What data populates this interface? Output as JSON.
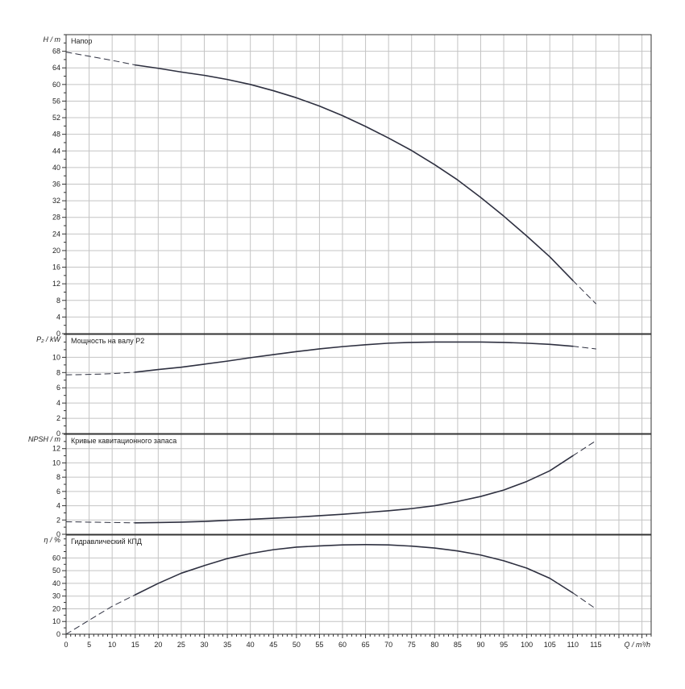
{
  "chart_data": [
    {
      "type": "line",
      "title": "Напор",
      "ylabel": "H / m",
      "ylim": [
        0,
        72
      ],
      "yticks": [
        0,
        4,
        8,
        12,
        16,
        20,
        24,
        28,
        32,
        36,
        40,
        44,
        48,
        52,
        56,
        60,
        64,
        68
      ],
      "series": [
        {
          "style": "dashed",
          "x": [
            0,
            5,
            10,
            15
          ],
          "y": [
            67.8,
            66.8,
            65.8,
            64.7
          ]
        },
        {
          "style": "solid",
          "x": [
            15,
            20,
            25,
            30,
            35,
            40,
            45,
            50,
            55,
            60,
            65,
            70,
            75,
            80,
            85,
            90,
            95,
            100,
            105,
            110
          ],
          "y": [
            64.7,
            63.9,
            63.0,
            62.2,
            61.2,
            60.0,
            58.5,
            56.8,
            54.8,
            52.5,
            49.9,
            47.1,
            44.1,
            40.7,
            37.0,
            32.8,
            28.3,
            23.5,
            18.5,
            12.8
          ]
        },
        {
          "style": "dashed",
          "x": [
            110,
            115
          ],
          "y": [
            12.8,
            7.2
          ]
        }
      ]
    },
    {
      "type": "line",
      "title": "Мощность на валу P2",
      "ylabel": "P₂ / kW",
      "ylim": [
        0,
        13
      ],
      "yticks": [
        0,
        2,
        4,
        6,
        8,
        10
      ],
      "series": [
        {
          "style": "dashed",
          "x": [
            0,
            5,
            10,
            15
          ],
          "y": [
            7.7,
            7.75,
            7.85,
            8.05
          ]
        },
        {
          "style": "solid",
          "x": [
            15,
            20,
            25,
            30,
            35,
            40,
            45,
            50,
            55,
            60,
            65,
            70,
            75,
            80,
            85,
            90,
            95,
            100,
            105,
            110
          ],
          "y": [
            8.05,
            8.4,
            8.7,
            9.1,
            9.5,
            9.95,
            10.35,
            10.75,
            11.1,
            11.4,
            11.65,
            11.85,
            11.95,
            12.0,
            12.0,
            12.0,
            11.95,
            11.85,
            11.7,
            11.45
          ]
        },
        {
          "style": "dashed",
          "x": [
            110,
            115
          ],
          "y": [
            11.45,
            11.1
          ]
        }
      ]
    },
    {
      "type": "line",
      "title": "Кривые кавитационного запаса",
      "ylabel": "NPSH / m",
      "ylim": [
        0,
        14
      ],
      "yticks": [
        0,
        2,
        4,
        6,
        8,
        10,
        12
      ],
      "series": [
        {
          "style": "dashed",
          "x": [
            0,
            5,
            10,
            15
          ],
          "y": [
            1.75,
            1.7,
            1.65,
            1.6
          ]
        },
        {
          "style": "solid",
          "x": [
            15,
            20,
            25,
            30,
            35,
            40,
            45,
            50,
            55,
            60,
            65,
            70,
            75,
            80,
            85,
            90,
            95,
            100,
            105,
            110
          ],
          "y": [
            1.6,
            1.65,
            1.7,
            1.8,
            1.95,
            2.1,
            2.25,
            2.4,
            2.6,
            2.8,
            3.05,
            3.3,
            3.6,
            4.0,
            4.6,
            5.3,
            6.2,
            7.4,
            8.9,
            11.0
          ]
        },
        {
          "style": "dashed",
          "x": [
            110,
            115
          ],
          "y": [
            11.0,
            13.1
          ]
        }
      ]
    },
    {
      "type": "line",
      "title": "Гидравлический КПД",
      "ylabel": "η / %",
      "xlabel": "Q / m³/h",
      "ylim": [
        0,
        78
      ],
      "yticks": [
        0,
        10,
        20,
        30,
        40,
        50,
        60
      ],
      "xlim": [
        0,
        127
      ],
      "xticks": [
        0,
        5,
        10,
        15,
        20,
        25,
        30,
        35,
        40,
        45,
        50,
        55,
        60,
        65,
        70,
        75,
        80,
        85,
        90,
        95,
        100,
        105,
        110,
        115
      ],
      "series": [
        {
          "style": "dashed",
          "x": [
            0,
            5,
            10,
            15
          ],
          "y": [
            0,
            11,
            22,
            31
          ]
        },
        {
          "style": "solid",
          "x": [
            15,
            20,
            25,
            30,
            35,
            40,
            45,
            50,
            55,
            60,
            65,
            70,
            75,
            80,
            85,
            90,
            95,
            100,
            105,
            110
          ],
          "y": [
            31,
            40,
            48,
            54,
            59.5,
            63.5,
            66.5,
            68.5,
            69.5,
            70.3,
            70.5,
            70.3,
            69.3,
            67.8,
            65.5,
            62.3,
            57.8,
            52.0,
            44.0,
            32.5
          ]
        },
        {
          "style": "dashed",
          "x": [
            110,
            115
          ],
          "y": [
            32.5,
            20
          ]
        }
      ]
    }
  ]
}
